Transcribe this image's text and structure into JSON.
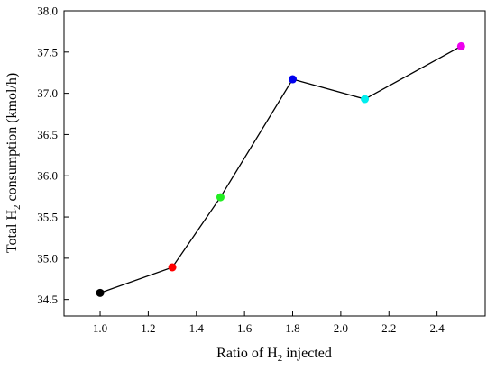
{
  "chart_data": {
    "type": "line",
    "xlabel": {
      "prefix": "Ratio of H",
      "subscript": "2",
      "suffix": " injected"
    },
    "ylabel": {
      "prefix": "Total H",
      "subscript": "2",
      "suffix": " consumption (kmol/h)"
    },
    "xlim": [
      0.85,
      2.6
    ],
    "ylim": [
      34.3,
      38.0
    ],
    "x_ticks": [
      1.0,
      1.2,
      1.4,
      1.6,
      1.8,
      2.0,
      2.2,
      2.4
    ],
    "x_tick_labels": [
      "1.0",
      "1.2",
      "1.4",
      "1.6",
      "1.8",
      "2.0",
      "2.2",
      "2.4"
    ],
    "y_ticks": [
      34.5,
      35.0,
      35.5,
      36.0,
      36.5,
      37.0,
      37.5,
      38.0
    ],
    "y_tick_labels": [
      "34.5",
      "35.0",
      "35.5",
      "36.0",
      "36.5",
      "37.0",
      "37.5",
      "38.0"
    ],
    "grid": false,
    "series": [
      {
        "x": [
          1.0,
          1.3,
          1.5,
          1.8,
          2.1,
          2.5
        ],
        "y": [
          34.58,
          34.89,
          35.74,
          37.17,
          36.93,
          37.57
        ],
        "line_color": "#000000",
        "point_colors": [
          "#000000",
          "#ff0000",
          "#22ee22",
          "#0000ee",
          "#00eeee",
          "#ee00ee"
        ]
      }
    ]
  }
}
